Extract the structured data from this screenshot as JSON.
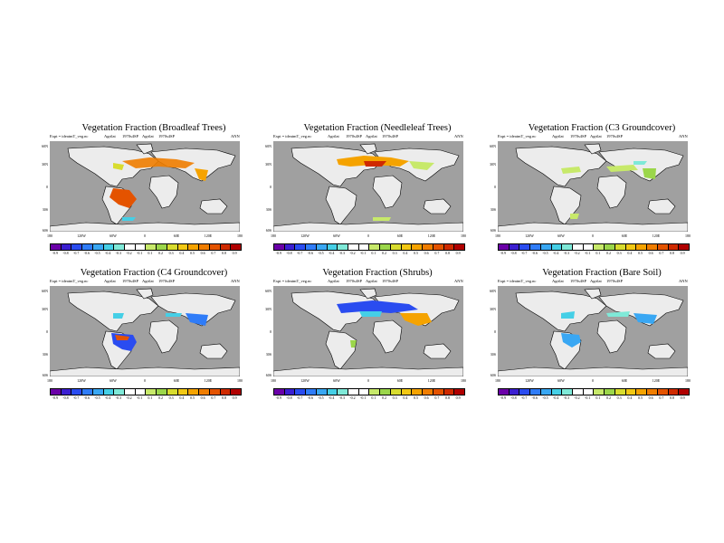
{
  "info": {
    "exp": "Expt = ideatmT_veg.nc",
    "lab1": "Agrilat",
    "lab2": "1970s4SP",
    "lab3": "Agrilat",
    "lab4": "1970s4SP",
    "season": "ANN"
  },
  "lat_labels": [
    "60N",
    "30N",
    "0",
    "30S",
    "60S"
  ],
  "lon_labels": [
    "180",
    "120W",
    "60W",
    "0",
    "60E",
    "120E",
    "180"
  ],
  "colorbar": {
    "labels": [
      "-0.9",
      "-0.8",
      "-0.7",
      "-0.6",
      "-0.5",
      "-0.4",
      "-0.3",
      "-0.2",
      "-0.1",
      "0.1",
      "0.2",
      "0.3",
      "0.4",
      "0.5",
      "0.6",
      "0.7",
      "0.8",
      "0.9"
    ],
    "colors": [
      "#6a00a8",
      "#3b1fd1",
      "#2a4cf0",
      "#2f7cf8",
      "#39a7f3",
      "#45cfe6",
      "#7fe9d8",
      "#ffffff",
      "#ffffff",
      "#c7e96a",
      "#9bd64a",
      "#d8dc2f",
      "#f2c814",
      "#f5a300",
      "#f07d00",
      "#e45300",
      "#cf2a00",
      "#b00000"
    ]
  },
  "colors": {
    "ocean": "#a0a0a0",
    "land": "#ececec"
  },
  "panels": [
    {
      "title": "Vegetation Fraction (Broadleaf Trees)"
    },
    {
      "title": "Vegetation Fraction (Needleleaf Trees)"
    },
    {
      "title": "Vegetation Fraction (C3 Groundcover)"
    },
    {
      "title": "Vegetation Fraction (C4 Groundcover)"
    },
    {
      "title": "Vegetation Fraction (Shrubs)"
    },
    {
      "title": "Vegetation Fraction (Bare Soil)"
    }
  ]
}
